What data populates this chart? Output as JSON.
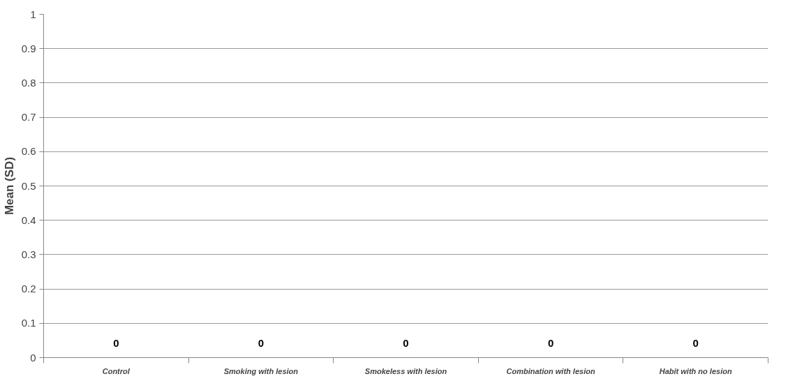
{
  "chart_data": {
    "type": "bar",
    "ylabel": "Mean (SD)",
    "categories": [
      "Control",
      "Smoking with lesion",
      "Smokeless with lesion",
      "Combination with lesion",
      "Habit with no lesion"
    ],
    "values": [
      0,
      0,
      0,
      0,
      0
    ],
    "ylim": [
      0,
      1
    ],
    "yticks": [
      0,
      0.1,
      0.2,
      0.3,
      0.4,
      0.5,
      0.6,
      0.7,
      0.8,
      0.9,
      1
    ],
    "grid": "y",
    "data_labels": true
  }
}
